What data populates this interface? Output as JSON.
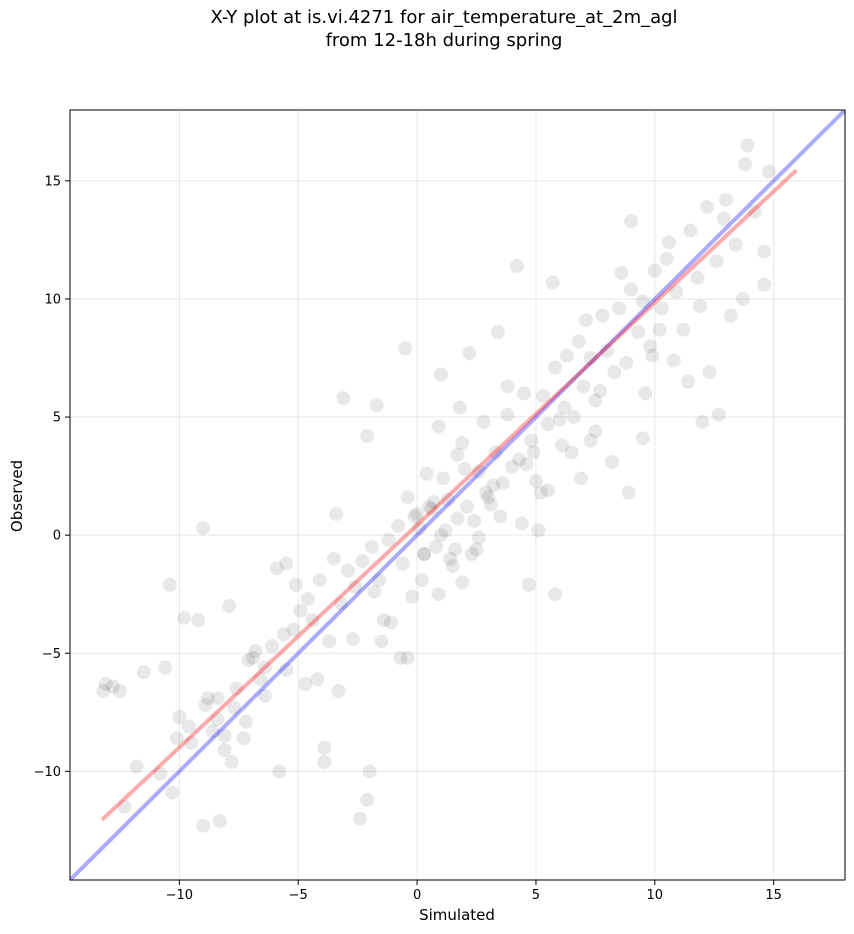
{
  "chart_data": {
    "type": "scatter",
    "title": "X-Y plot at is.vi.4271 for air_temperature_at_2m_agl",
    "subtitle": "from 12-18h during spring",
    "xlabel": "Simulated",
    "ylabel": "Observed",
    "xlim": [
      -14.6,
      18.0
    ],
    "ylim": [
      -14.6,
      18.0
    ],
    "xticks": [
      -10,
      -5,
      0,
      5,
      10,
      15
    ],
    "yticks": [
      -10,
      -5,
      0,
      5,
      10,
      15
    ],
    "xtick_labels": [
      "−10",
      "−5",
      "0",
      "5",
      "10",
      "15"
    ],
    "ytick_labels": [
      "−10",
      "−5",
      "0",
      "5",
      "10",
      "15"
    ],
    "grid": true,
    "point_color": "#000000",
    "point_alpha": 0.09,
    "lines": [
      {
        "role": "one-to-one",
        "color": "#0000ff",
        "x": [
          -14.6,
          18.0
        ],
        "y": [
          -14.6,
          18.0
        ]
      },
      {
        "role": "regression-fit",
        "color": "#ff0000",
        "x": [
          -13.2,
          15.9
        ],
        "y": [
          -12.0,
          15.4
        ]
      }
    ],
    "series": [
      {
        "x": [
          -13.2,
          -13.1,
          -12.8,
          -12.5,
          -12.3,
          -11.8,
          -11.5,
          -10.8,
          -10.6,
          -10.4,
          -10.3,
          -10.1,
          -10.0,
          -9.8,
          -9.6,
          -9.5,
          -9.2,
          -9.0,
          -8.9,
          -8.8,
          -8.6,
          -8.4,
          -8.3,
          -8.1,
          -7.9,
          -7.8,
          -7.7,
          -7.6,
          -7.3,
          -7.1,
          -6.8,
          -6.6,
          -6.4,
          -6.1,
          -5.9,
          -5.8,
          -5.6,
          -5.5,
          -5.2,
          -4.9,
          -4.6,
          -4.4,
          -4.1,
          -3.9,
          -3.7,
          -3.5,
          -3.2,
          -3.1,
          -2.9,
          -2.6,
          -2.3,
          -2.1,
          -1.9,
          -1.6,
          -1.5,
          -1.2,
          -1.1,
          -0.8,
          -0.6,
          -0.4,
          -0.2,
          0.0,
          0.1,
          0.3,
          0.4,
          0.6,
          0.8,
          1.0,
          1.1,
          1.3,
          1.5,
          1.7,
          1.9,
          2.1,
          2.3,
          2.6,
          2.8,
          3.0,
          3.3,
          3.5,
          3.8,
          4.0,
          4.3,
          4.5,
          4.8,
          5.0,
          5.3,
          5.5,
          5.8,
          6.0,
          6.3,
          6.5,
          6.8,
          7.0,
          7.3,
          7.5,
          7.8,
          8.0,
          8.3,
          8.5,
          8.8,
          9.0,
          9.3,
          9.5,
          9.8,
          10.0,
          10.3,
          10.6,
          10.9,
          11.2,
          11.5,
          11.9,
          12.2,
          12.6,
          13.0,
          13.4,
          13.8,
          14.2,
          14.6,
          14.8,
          -9.0,
          -8.4,
          -2.4,
          -2.0,
          -5.5,
          -3.9,
          -2.1,
          -1.7,
          2.6,
          4.2,
          4.7,
          5.8,
          5.7,
          8.9,
          9.5,
          12.0,
          12.7,
          13.2,
          11.4,
          9.0,
          5.2,
          5.5,
          -0.4,
          -0.7,
          1.0,
          2.2,
          3.4,
          6.9,
          8.2,
          9.6,
          10.2,
          10.8,
          12.3,
          13.7,
          14.6,
          13.9,
          2.5,
          7.3,
          4.6,
          6.2,
          3.8,
          0.5,
          1.7,
          -0.1,
          1.4,
          2.9,
          3.6,
          4.9,
          6.6,
          7.7,
          -4.7,
          -6.4,
          -7.2,
          -3.3,
          0.2,
          0.9,
          1.9,
          3.1,
          5.1,
          6.1,
          7.5,
          -1.4,
          -2.7,
          -4.2,
          -6.9,
          -8.1,
          0.7,
          1.2,
          2.0,
          2.4,
          1.6,
          0.3,
          0.9,
          1.8,
          3.2,
          4.4,
          -0.5,
          -1.8,
          -3.4,
          -5.1,
          10.5,
          11.8,
          12.9,
          9.9,
          8.6,
          7.1
        ],
        "y": [
          -6.6,
          -6.3,
          -6.4,
          -6.6,
          -11.5,
          -9.8,
          -5.8,
          -10.1,
          -5.6,
          -2.1,
          -10.9,
          -8.6,
          -7.7,
          -3.5,
          -8.1,
          -8.8,
          -3.6,
          -12.3,
          -7.2,
          -6.9,
          -8.3,
          -7.8,
          -12.1,
          -9.1,
          -3.0,
          -9.6,
          -7.3,
          -6.5,
          -8.6,
          -5.3,
          -4.9,
          -6.1,
          -5.6,
          -4.7,
          -1.4,
          -10.0,
          -4.2,
          -5.7,
          -4.0,
          -3.2,
          -2.7,
          -3.6,
          -1.9,
          -9.0,
          -4.5,
          -1.0,
          -2.9,
          5.8,
          -1.5,
          -2.2,
          -1.1,
          -11.2,
          -0.5,
          -1.9,
          -4.5,
          -0.2,
          -3.7,
          0.4,
          -1.2,
          1.6,
          -2.6,
          0.9,
          0.3,
          -0.8,
          2.6,
          1.1,
          -0.5,
          0.0,
          2.4,
          1.5,
          -1.3,
          0.7,
          3.9,
          1.2,
          -0.8,
          2.7,
          4.8,
          1.6,
          3.5,
          0.8,
          5.1,
          2.9,
          3.2,
          6.0,
          4.0,
          2.3,
          5.9,
          4.7,
          7.1,
          4.9,
          7.6,
          3.5,
          8.2,
          6.3,
          7.5,
          5.7,
          9.3,
          7.8,
          6.9,
          9.6,
          7.3,
          10.4,
          8.6,
          9.9,
          8.0,
          11.2,
          9.6,
          12.4,
          10.3,
          8.7,
          12.9,
          9.7,
          13.9,
          11.6,
          14.2,
          12.3,
          15.7,
          13.7,
          12.0,
          15.4,
          0.3,
          -6.9,
          -12.0,
          -10.0,
          -1.2,
          -9.6,
          4.2,
          5.5,
          -0.1,
          11.4,
          -2.1,
          -2.5,
          10.7,
          1.8,
          4.1,
          4.8,
          5.1,
          9.3,
          6.5,
          13.3,
          1.8,
          1.9,
          -5.2,
          -5.2,
          6.8,
          7.7,
          8.6,
          2.4,
          3.1,
          6.0,
          8.7,
          7.4,
          6.9,
          10.0,
          10.6,
          16.5,
          -0.6,
          4.0,
          3.0,
          5.4,
          6.3,
          1.2,
          3.4,
          0.8,
          -1.0,
          1.8,
          2.2,
          3.5,
          5.0,
          6.1,
          -6.3,
          -6.8,
          -7.9,
          -6.6,
          -1.9,
          -2.5,
          -2.0,
          1.3,
          0.2,
          3.8,
          4.4,
          -3.6,
          -4.4,
          -6.1,
          -5.2,
          -8.5,
          1.4,
          0.2,
          2.8,
          0.6,
          -0.6,
          -0.8,
          4.6,
          5.4,
          2.1,
          0.5,
          7.9,
          -2.4,
          0.9,
          -2.1,
          11.7,
          10.9,
          13.4,
          7.6,
          11.1,
          9.1
        ]
      }
    ]
  }
}
